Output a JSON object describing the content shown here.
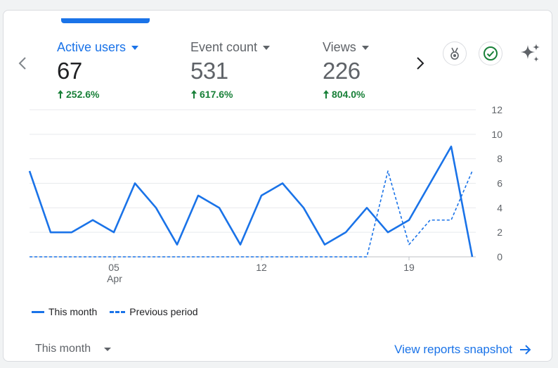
{
  "metrics": [
    {
      "label": "Active users",
      "value": "67",
      "change": "252.6%"
    },
    {
      "label": "Event count",
      "value": "531",
      "change": "617.6%"
    },
    {
      "label": "Views",
      "value": "226",
      "change": "804.0%"
    }
  ],
  "chart_data": {
    "type": "line",
    "y_ticks": [
      "0",
      "2",
      "4",
      "6",
      "8",
      "10",
      "12"
    ],
    "ylim": [
      0,
      12
    ],
    "x_ticks": [
      {
        "day": 5,
        "label": "05",
        "sublabel": "Apr"
      },
      {
        "day": 12,
        "label": "12",
        "sublabel": ""
      },
      {
        "day": 19,
        "label": "19",
        "sublabel": ""
      }
    ],
    "x": [
      1,
      2,
      3,
      4,
      5,
      6,
      7,
      8,
      9,
      10,
      11,
      12,
      13,
      14,
      15,
      16,
      17,
      18,
      19,
      20,
      21,
      22
    ],
    "series": [
      {
        "name": "This month",
        "style": "solid",
        "values": [
          7,
          2,
          2,
          3,
          2,
          6,
          4,
          1,
          5,
          4,
          1,
          5,
          6,
          4,
          1,
          2,
          4,
          2,
          3,
          6,
          9,
          0
        ]
      },
      {
        "name": "Previous period",
        "style": "dashed",
        "values": [
          0,
          0,
          0,
          0,
          0,
          0,
          0,
          0,
          0,
          0,
          0,
          0,
          0,
          0,
          0,
          0,
          0,
          7,
          1,
          3,
          3,
          7
        ]
      }
    ],
    "grid": true,
    "legend_position": "bottom-left",
    "color": "#1a73e8"
  },
  "footer": {
    "period_label": "This month",
    "view_link": "View reports snapshot"
  },
  "colors": {
    "accent": "#1a73e8",
    "positive": "#188038",
    "check": "#188038"
  }
}
